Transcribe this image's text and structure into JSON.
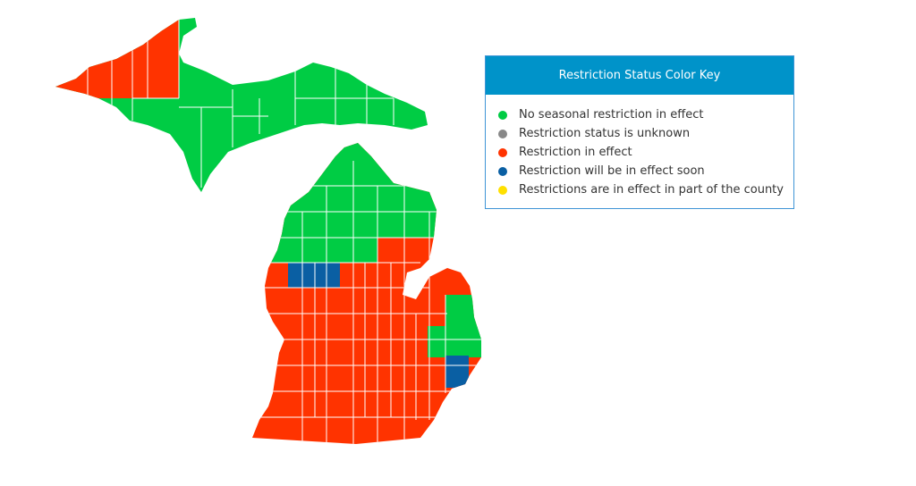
{
  "legend": {
    "title": "Restriction Status Color Key",
    "items": [
      {
        "label": "No seasonal restriction in effect",
        "color": "#00cc44"
      },
      {
        "label": "Restriction status is unknown",
        "color": "#888888"
      },
      {
        "label": "Restriction in effect",
        "color": "#ff3300"
      },
      {
        "label": "Restriction will be in effect soon",
        "color": "#0a5fa3"
      },
      {
        "label": "Restrictions are in effect in part of the county",
        "color": "#ffe000"
      }
    ]
  }
}
